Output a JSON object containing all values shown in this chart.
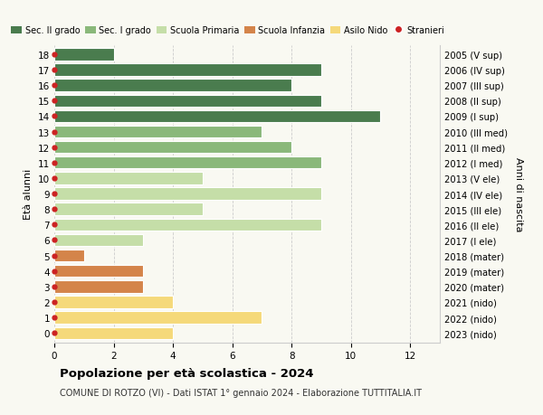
{
  "ages": [
    18,
    17,
    16,
    15,
    14,
    13,
    12,
    11,
    10,
    9,
    8,
    7,
    6,
    5,
    4,
    3,
    2,
    1,
    0
  ],
  "years": [
    "2005 (V sup)",
    "2006 (IV sup)",
    "2007 (III sup)",
    "2008 (II sup)",
    "2009 (I sup)",
    "2010 (III med)",
    "2011 (II med)",
    "2012 (I med)",
    "2013 (V ele)",
    "2014 (IV ele)",
    "2015 (III ele)",
    "2016 (II ele)",
    "2017 (I ele)",
    "2018 (mater)",
    "2019 (mater)",
    "2020 (mater)",
    "2021 (nido)",
    "2022 (nido)",
    "2023 (nido)"
  ],
  "values": [
    2,
    9,
    8,
    9,
    11,
    7,
    8,
    9,
    5,
    9,
    5,
    9,
    3,
    1,
    3,
    3,
    4,
    7,
    4
  ],
  "colors": [
    "#4a7c4e",
    "#4a7c4e",
    "#4a7c4e",
    "#4a7c4e",
    "#4a7c4e",
    "#8ab87a",
    "#8ab87a",
    "#8ab87a",
    "#c5dea8",
    "#c5dea8",
    "#c5dea8",
    "#c5dea8",
    "#c5dea8",
    "#d4844a",
    "#d4844a",
    "#d4844a",
    "#f5d97a",
    "#f5d97a",
    "#f5d97a"
  ],
  "legend_labels": [
    "Sec. II grado",
    "Sec. I grado",
    "Scuola Primaria",
    "Scuola Infanzia",
    "Asilo Nido",
    "Stranieri"
  ],
  "legend_colors": [
    "#4a7c4e",
    "#8ab87a",
    "#c5dea8",
    "#d4844a",
    "#f5d97a",
    "#cc2222"
  ],
  "title": "Popolazione per età scolastica - 2024",
  "subtitle": "COMUNE DI ROTZO (VI) - Dati ISTAT 1° gennaio 2024 - Elaborazione TUTTITALIA.IT",
  "xlabel_label": "Età alunni",
  "ylabel_label": "Anni di nascita",
  "xlim": [
    0,
    13
  ],
  "background_color": "#f9f9f2",
  "bar_edge_color": "white",
  "grid_color": "#cccccc",
  "dot_color": "#cc2222"
}
